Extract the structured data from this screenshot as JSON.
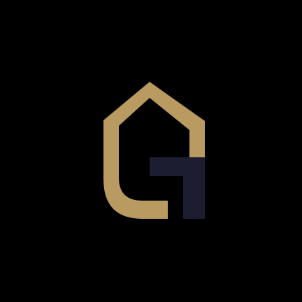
{
  "logo": {
    "icon": "house-g-monogram",
    "colors": {
      "background": "#000000",
      "gold": "#B99A61",
      "navy": "#1D1D32"
    }
  }
}
